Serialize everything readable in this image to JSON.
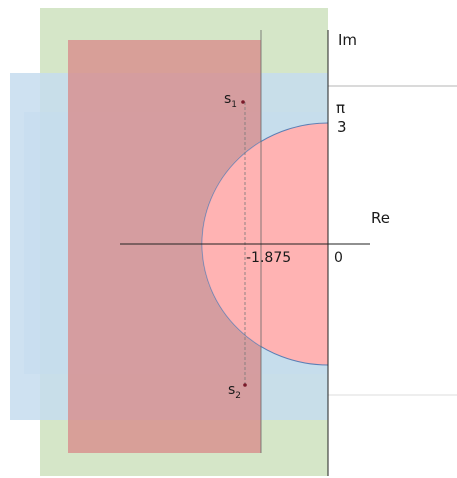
{
  "axes": {
    "imaginary_label": "Im",
    "real_label": "Re",
    "origin_label": "0"
  },
  "annotations": {
    "pi_label": "π",
    "pi_denominator": "3",
    "center_value": "-1.875"
  },
  "points": {
    "s1": {
      "base": "s",
      "subscript": "1"
    },
    "s2": {
      "base": "s",
      "subscript": "2"
    }
  },
  "colors": {
    "green_region": "#d5e6c8",
    "blue_region": "#c5dcef",
    "red_region": "#d98a8a",
    "circle_fill": "#ffb3b3",
    "circle_stroke": "#5b7fb5",
    "axis": "#222222",
    "dashed_line": "#777777",
    "point": "#7a1a2a"
  }
}
